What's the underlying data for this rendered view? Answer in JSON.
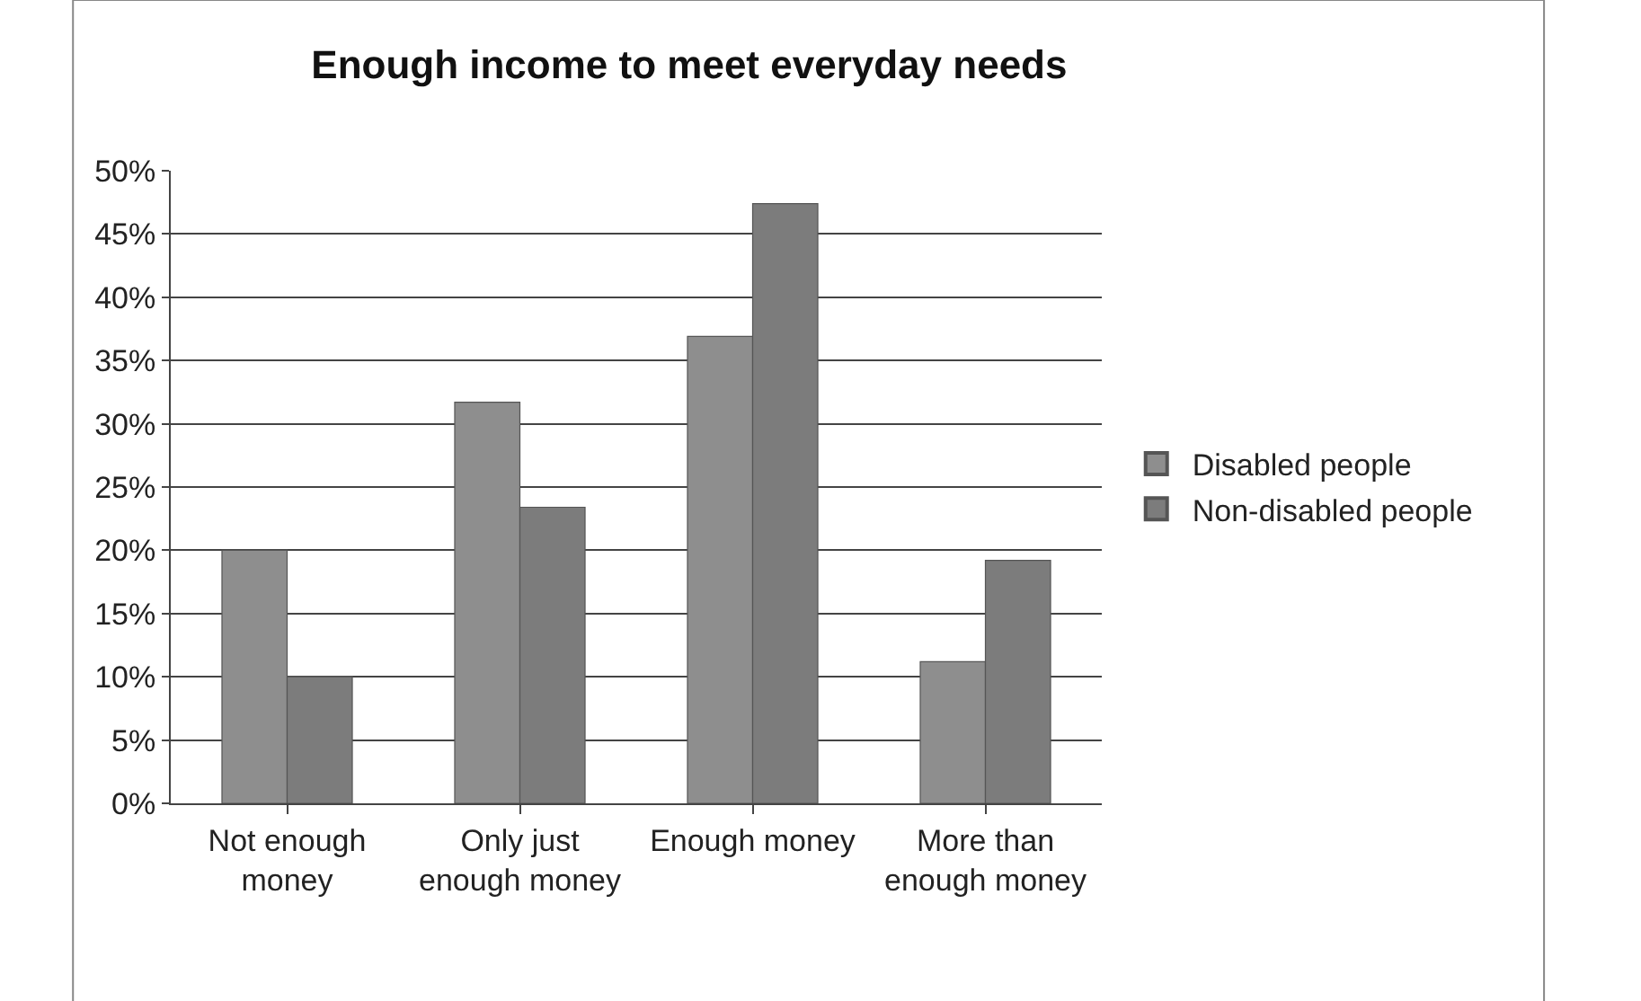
{
  "chart_data": {
    "type": "bar",
    "title": "Enough income to meet everyday needs",
    "categories": [
      "Not enough money",
      "Only just enough money",
      "Enough money",
      "More than enough money"
    ],
    "series": [
      {
        "name": "Disabled people",
        "color": "#8e8e8e",
        "values": [
          20,
          31.7,
          36.9,
          11.2
        ]
      },
      {
        "name": "Non-disabled people",
        "color": "#7c7c7c",
        "values": [
          10,
          23.4,
          47.4,
          19.2
        ]
      }
    ],
    "ylim": [
      0,
      50
    ],
    "yticks": [
      {
        "value": 0,
        "label": "0%"
      },
      {
        "value": 5,
        "label": "5%"
      },
      {
        "value": 10,
        "label": "10%"
      },
      {
        "value": 15,
        "label": "15%"
      },
      {
        "value": 20,
        "label": "20%"
      },
      {
        "value": 25,
        "label": "25%"
      },
      {
        "value": 30,
        "label": "30%"
      },
      {
        "value": 35,
        "label": "35%"
      },
      {
        "value": 40,
        "label": "40%"
      },
      {
        "value": 45,
        "label": "45%"
      },
      {
        "value": 50,
        "label": "50%"
      }
    ],
    "grid": "y",
    "legend": "right"
  }
}
